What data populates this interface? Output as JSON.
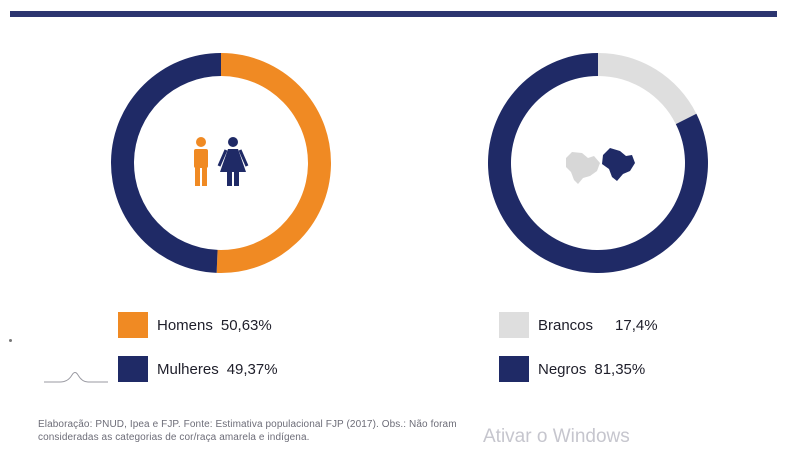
{
  "colors": {
    "navy": "#1f2a66",
    "orange": "#f08a23",
    "light_gray": "#dedede",
    "top_bar": "#2c3570"
  },
  "icons": {
    "left_center": "man-woman-icon",
    "right_center": "brazil-map-icon"
  },
  "chart_data": [
    {
      "type": "pie",
      "style": "donut",
      "series": [
        {
          "name": "Homens",
          "value": 50.63,
          "color": "#f08a23"
        },
        {
          "name": "Mulheres",
          "value": 49.37,
          "color": "#1f2a66"
        }
      ]
    },
    {
      "type": "pie",
      "style": "donut",
      "series": [
        {
          "name": "Brancos",
          "value": 17.4,
          "color": "#dedede"
        },
        {
          "name": "Negros",
          "value": 81.35,
          "color": "#1f2a66"
        }
      ]
    }
  ],
  "legend": {
    "left": [
      {
        "label": "Homens",
        "value": "50,63%",
        "color": "#f08a23"
      },
      {
        "label": "Mulheres",
        "value": "49,37%",
        "color": "#1f2a66"
      }
    ],
    "right": [
      {
        "label": "Brancos",
        "value": "17,4%",
        "color": "#dedede"
      },
      {
        "label": "Negros",
        "value": "81,35%",
        "color": "#1f2a66"
      }
    ]
  },
  "footnote": {
    "line1": "Elaboração: PNUD, Ipea e FJP. Fonte: Estimativa populacional FJP (2017). Obs.: Não foram",
    "line2": "consideradas as categorias de cor/raça amarela e indígena."
  },
  "watermark": "Ativar o Windows"
}
